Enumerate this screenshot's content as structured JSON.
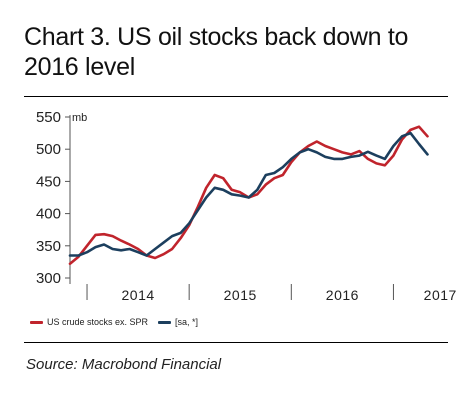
{
  "title": "Chart 3. US oil stocks back down to 2016 level",
  "source": "Source: Macrobond Financial",
  "colors": {
    "crude_stocks": "#c0242c",
    "seasonally_adjusted": "#1c3f5e",
    "axis": "#555555",
    "text": "#222222"
  },
  "chart_data": {
    "type": "line",
    "title": "Chart 3. US oil stocks back down to 2016 level",
    "ylabel": "mb",
    "xlabel": "",
    "ylim": [
      300,
      550
    ],
    "xlim": [
      "2013-11",
      "2017-06"
    ],
    "yticks": [
      300,
      350,
      400,
      450,
      500,
      550
    ],
    "xtick_labels": [
      "2014",
      "2015",
      "2016",
      "2017"
    ],
    "x_year_boundaries": [
      "2014-01",
      "2015-01",
      "2016-01",
      "2017-01"
    ],
    "grid": false,
    "legend_position": "bottom-left",
    "series": [
      {
        "name": "US crude stocks ex. SPR",
        "color": "#c0242c",
        "x": [
          "2013-11",
          "2013-12",
          "2014-01",
          "2014-02",
          "2014-03",
          "2014-04",
          "2014-05",
          "2014-06",
          "2014-07",
          "2014-08",
          "2014-09",
          "2014-10",
          "2014-11",
          "2014-12",
          "2015-01",
          "2015-02",
          "2015-03",
          "2015-04",
          "2015-05",
          "2015-06",
          "2015-07",
          "2015-08",
          "2015-09",
          "2015-10",
          "2015-11",
          "2015-12",
          "2016-01",
          "2016-02",
          "2016-03",
          "2016-04",
          "2016-05",
          "2016-06",
          "2016-07",
          "2016-08",
          "2016-09",
          "2016-10",
          "2016-11",
          "2016-12",
          "2017-01",
          "2017-02",
          "2017-03",
          "2017-04",
          "2017-05"
        ],
        "values": [
          322,
          333,
          350,
          367,
          368,
          365,
          358,
          352,
          345,
          335,
          331,
          337,
          345,
          362,
          382,
          410,
          440,
          460,
          455,
          437,
          433,
          425,
          430,
          445,
          455,
          460,
          480,
          495,
          505,
          512,
          505,
          500,
          495,
          492,
          497,
          485,
          478,
          475,
          490,
          515,
          530,
          535,
          520
        ]
      },
      {
        "name": "[sa, *]",
        "color": "#1c3f5e",
        "x": [
          "2013-11",
          "2013-12",
          "2014-01",
          "2014-02",
          "2014-03",
          "2014-04",
          "2014-05",
          "2014-06",
          "2014-07",
          "2014-08",
          "2014-09",
          "2014-10",
          "2014-11",
          "2014-12",
          "2015-01",
          "2015-02",
          "2015-03",
          "2015-04",
          "2015-05",
          "2015-06",
          "2015-07",
          "2015-08",
          "2015-09",
          "2015-10",
          "2015-11",
          "2015-12",
          "2016-01",
          "2016-02",
          "2016-03",
          "2016-04",
          "2016-05",
          "2016-06",
          "2016-07",
          "2016-08",
          "2016-09",
          "2016-10",
          "2016-11",
          "2016-12",
          "2017-01",
          "2017-02",
          "2017-03",
          "2017-04",
          "2017-05"
        ],
        "values": [
          335,
          335,
          340,
          348,
          352,
          345,
          343,
          345,
          340,
          335,
          345,
          355,
          365,
          370,
          385,
          405,
          425,
          440,
          437,
          430,
          428,
          425,
          437,
          460,
          463,
          472,
          485,
          495,
          500,
          495,
          488,
          485,
          485,
          488,
          490,
          496,
          490,
          485,
          505,
          520,
          525,
          508,
          492
        ]
      }
    ]
  }
}
